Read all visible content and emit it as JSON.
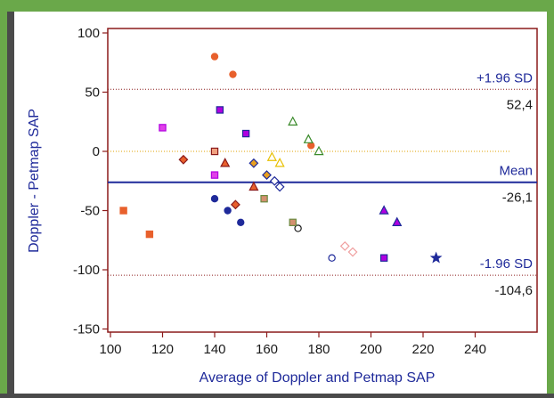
{
  "chart_data": {
    "type": "scatter",
    "title": "",
    "xlabel": "Average of Doppler and Petmap SAP",
    "ylabel": "Doppler - Petmap SAP",
    "xlim": [
      100,
      240
    ],
    "ylim": [
      -150,
      100
    ],
    "x_ticks": [
      "100",
      "120",
      "140",
      "160",
      "180",
      "200",
      "220",
      "240"
    ],
    "y_ticks": [
      "100",
      "50",
      "0",
      "-50",
      "-100",
      "-150"
    ],
    "grid": false,
    "reference_lines": {
      "mean": {
        "label": "Mean",
        "value_label": "-26,1",
        "value": -26.1,
        "color": "#1f2a9a"
      },
      "upper": {
        "label": "+1.96 SD",
        "value_label": "52,4",
        "value": 52.4,
        "color": "#8b1a1a"
      },
      "lower": {
        "label": "-1.96 SD",
        "value_label": "-104,6",
        "value": -104.6,
        "color": "#8b1a1a"
      },
      "zero": {
        "value": 0,
        "color": "#e0a000"
      }
    },
    "points": [
      {
        "x": 140,
        "y": 80,
        "shape": "circle",
        "fill": "#e8602c",
        "stroke": "#e8602c"
      },
      {
        "x": 147,
        "y": 65,
        "shape": "circle",
        "fill": "#e8602c",
        "stroke": "#e8602c"
      },
      {
        "x": 177,
        "y": 5,
        "shape": "circle",
        "fill": "#e8602c",
        "stroke": "#e8602c"
      },
      {
        "x": 140,
        "y": -40,
        "shape": "circle",
        "fill": "#1f2a9a",
        "stroke": "#1f2a9a"
      },
      {
        "x": 145,
        "y": -50,
        "shape": "circle",
        "fill": "#1f2a9a",
        "stroke": "#1f2a9a"
      },
      {
        "x": 150,
        "y": -60,
        "shape": "circle",
        "fill": "#1f2a9a",
        "stroke": "#1f2a9a"
      },
      {
        "x": 172,
        "y": -65,
        "shape": "circle",
        "fill": "#ffffff",
        "stroke": "#1a1a1a"
      },
      {
        "x": 185,
        "y": -90,
        "shape": "circle",
        "fill": "#ffffff",
        "stroke": "#1f2a9a"
      },
      {
        "x": 142,
        "y": 35,
        "shape": "square",
        "fill": "#b000e0",
        "stroke": "#1f2a9a"
      },
      {
        "x": 120,
        "y": 20,
        "shape": "square",
        "fill": "#e040e8",
        "stroke": "#b000e0"
      },
      {
        "x": 152,
        "y": 15,
        "shape": "square",
        "fill": "#b000e0",
        "stroke": "#1f2a9a"
      },
      {
        "x": 140,
        "y": 0,
        "shape": "square",
        "fill": "#f0a080",
        "stroke": "#8b1a1a"
      },
      {
        "x": 140,
        "y": -20,
        "shape": "square",
        "fill": "#e040e8",
        "stroke": "#b000e0"
      },
      {
        "x": 159,
        "y": -40,
        "shape": "square",
        "fill": "#d49070",
        "stroke": "#6a8a40"
      },
      {
        "x": 170,
        "y": -60,
        "shape": "square",
        "fill": "#d49070",
        "stroke": "#6a8a40"
      },
      {
        "x": 105,
        "y": -50,
        "shape": "square",
        "fill": "#e8602c",
        "stroke": "#e8602c"
      },
      {
        "x": 115,
        "y": -70,
        "shape": "square",
        "fill": "#e8602c",
        "stroke": "#e8602c"
      },
      {
        "x": 205,
        "y": -90,
        "shape": "square",
        "fill": "#b000e0",
        "stroke": "#1f2a9a"
      },
      {
        "x": 128,
        "y": -7,
        "shape": "diamond",
        "fill": "#e8602c",
        "stroke": "#8b1a1a"
      },
      {
        "x": 155,
        "y": -10,
        "shape": "diamond",
        "fill": "#e8a020",
        "stroke": "#1f2a9a"
      },
      {
        "x": 160,
        "y": -20,
        "shape": "diamond",
        "fill": "#e8a020",
        "stroke": "#1f2a9a"
      },
      {
        "x": 163,
        "y": -25,
        "shape": "diamond",
        "fill": "#ffffff",
        "stroke": "#1f2a9a"
      },
      {
        "x": 165,
        "y": -30,
        "shape": "diamond",
        "fill": "#ffffff",
        "stroke": "#1f2a9a"
      },
      {
        "x": 148,
        "y": -45,
        "shape": "diamond",
        "fill": "#e8602c",
        "stroke": "#8b1a1a"
      },
      {
        "x": 190,
        "y": -80,
        "shape": "diamond",
        "fill": "#ffffff",
        "stroke": "#f0a0a0"
      },
      {
        "x": 193,
        "y": -85,
        "shape": "diamond",
        "fill": "#ffffff",
        "stroke": "#f0a0a0"
      },
      {
        "x": 170,
        "y": 25,
        "shape": "triangle",
        "fill": "#ffffff",
        "stroke": "#3a8a2a"
      },
      {
        "x": 176,
        "y": 10,
        "shape": "triangle",
        "fill": "#ffffff",
        "stroke": "#3a8a2a"
      },
      {
        "x": 180,
        "y": 0,
        "shape": "triangle",
        "fill": "#ffffff",
        "stroke": "#3a8a2a"
      },
      {
        "x": 162,
        "y": -5,
        "shape": "triangle",
        "fill": "#ffffff",
        "stroke": "#e8c000"
      },
      {
        "x": 165,
        "y": -10,
        "shape": "triangle",
        "fill": "#ffffff",
        "stroke": "#e8c000"
      },
      {
        "x": 144,
        "y": -10,
        "shape": "triangle",
        "fill": "#e8602c",
        "stroke": "#8b1a1a"
      },
      {
        "x": 155,
        "y": -30,
        "shape": "triangle",
        "fill": "#e8602c",
        "stroke": "#8b1a1a"
      },
      {
        "x": 205,
        "y": -50,
        "shape": "triangle",
        "fill": "#b000e0",
        "stroke": "#1f2a9a"
      },
      {
        "x": 210,
        "y": -60,
        "shape": "triangle",
        "fill": "#b000e0",
        "stroke": "#1f2a9a"
      },
      {
        "x": 225,
        "y": -90,
        "shape": "star",
        "fill": "#1f2a9a",
        "stroke": "#1f2a9a"
      }
    ]
  }
}
